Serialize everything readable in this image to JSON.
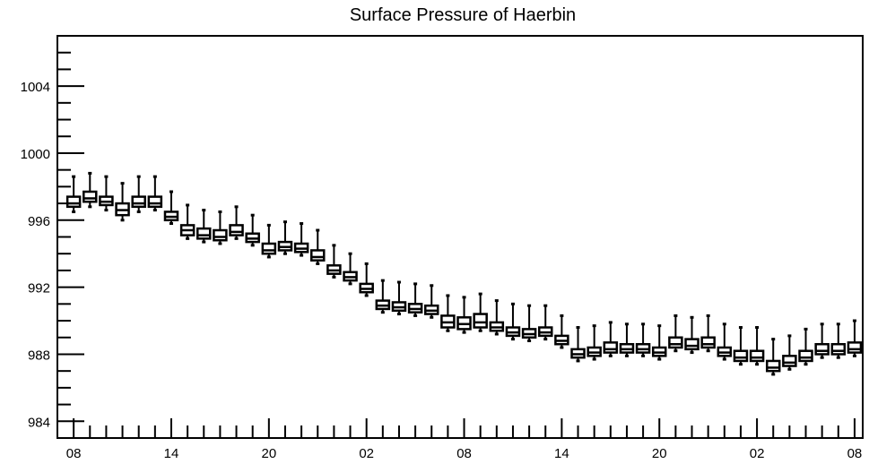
{
  "chart_data": {
    "type": "box",
    "title": "Surface Pressure of Haerbin",
    "xlabel": "",
    "ylabel": "",
    "ylim": [
      983,
      1007
    ],
    "yticks": [
      984,
      988,
      992,
      996,
      1000,
      1004
    ],
    "ytick_labels": [
      "984",
      "988",
      "992",
      "996",
      "1000",
      "1004"
    ],
    "xlim": [
      -1,
      48.5
    ],
    "xticks": [
      0,
      6,
      12,
      18,
      24,
      30,
      36,
      42,
      48
    ],
    "xtick_labels": [
      "08",
      "14",
      "20",
      "02",
      "08",
      "14",
      "20",
      "02",
      "08"
    ],
    "grid": false,
    "boxes": [
      {
        "x": 0,
        "whisker_low": 996.5,
        "q1": 996.8,
        "median": 997.0,
        "q3": 997.4,
        "whisker_high": 998.6
      },
      {
        "x": 1,
        "whisker_low": 996.8,
        "q1": 997.1,
        "median": 997.3,
        "q3": 997.7,
        "whisker_high": 998.8
      },
      {
        "x": 2,
        "whisker_low": 996.6,
        "q1": 996.9,
        "median": 997.1,
        "q3": 997.4,
        "whisker_high": 998.6
      },
      {
        "x": 3,
        "whisker_low": 996.0,
        "q1": 996.3,
        "median": 996.6,
        "q3": 997.0,
        "whisker_high": 998.2
      },
      {
        "x": 4,
        "whisker_low": 996.5,
        "q1": 996.8,
        "median": 997.0,
        "q3": 997.4,
        "whisker_high": 998.6
      },
      {
        "x": 5,
        "whisker_low": 996.6,
        "q1": 996.8,
        "median": 997.0,
        "q3": 997.4,
        "whisker_high": 998.6
      },
      {
        "x": 6,
        "whisker_low": 995.8,
        "q1": 996.0,
        "median": 996.2,
        "q3": 996.5,
        "whisker_high": 997.7
      },
      {
        "x": 7,
        "whisker_low": 994.9,
        "q1": 995.1,
        "median": 995.4,
        "q3": 995.7,
        "whisker_high": 996.9
      },
      {
        "x": 8,
        "whisker_low": 994.7,
        "q1": 994.9,
        "median": 995.1,
        "q3": 995.5,
        "whisker_high": 996.6
      },
      {
        "x": 9,
        "whisker_low": 994.6,
        "q1": 994.8,
        "median": 995.0,
        "q3": 995.4,
        "whisker_high": 996.5
      },
      {
        "x": 10,
        "whisker_low": 994.9,
        "q1": 995.1,
        "median": 995.3,
        "q3": 995.7,
        "whisker_high": 996.8
      },
      {
        "x": 11,
        "whisker_low": 994.5,
        "q1": 994.7,
        "median": 994.9,
        "q3": 995.2,
        "whisker_high": 996.3
      },
      {
        "x": 12,
        "whisker_low": 993.8,
        "q1": 994.0,
        "median": 994.2,
        "q3": 994.6,
        "whisker_high": 995.7
      },
      {
        "x": 13,
        "whisker_low": 994.0,
        "q1": 994.2,
        "median": 994.4,
        "q3": 994.7,
        "whisker_high": 995.9
      },
      {
        "x": 14,
        "whisker_low": 993.9,
        "q1": 994.1,
        "median": 994.3,
        "q3": 994.6,
        "whisker_high": 995.8
      },
      {
        "x": 15,
        "whisker_low": 993.4,
        "q1": 993.6,
        "median": 993.8,
        "q3": 994.2,
        "whisker_high": 995.4
      },
      {
        "x": 16,
        "whisker_low": 992.6,
        "q1": 992.8,
        "median": 993.0,
        "q3": 993.3,
        "whisker_high": 994.5
      },
      {
        "x": 17,
        "whisker_low": 992.2,
        "q1": 992.4,
        "median": 992.6,
        "q3": 992.9,
        "whisker_high": 994.0
      },
      {
        "x": 18,
        "whisker_low": 991.5,
        "q1": 991.7,
        "median": 991.9,
        "q3": 992.2,
        "whisker_high": 993.4
      },
      {
        "x": 19,
        "whisker_low": 990.5,
        "q1": 990.7,
        "median": 990.9,
        "q3": 991.2,
        "whisker_high": 992.4
      },
      {
        "x": 20,
        "whisker_low": 990.4,
        "q1": 990.6,
        "median": 990.8,
        "q3": 991.1,
        "whisker_high": 992.3
      },
      {
        "x": 21,
        "whisker_low": 990.3,
        "q1": 990.5,
        "median": 990.7,
        "q3": 991.0,
        "whisker_high": 992.2
      },
      {
        "x": 22,
        "whisker_low": 990.2,
        "q1": 990.4,
        "median": 990.6,
        "q3": 990.9,
        "whisker_high": 992.1
      },
      {
        "x": 23,
        "whisker_low": 989.4,
        "q1": 989.6,
        "median": 989.9,
        "q3": 990.3,
        "whisker_high": 991.5
      },
      {
        "x": 24,
        "whisker_low": 989.3,
        "q1": 989.5,
        "median": 989.8,
        "q3": 990.2,
        "whisker_high": 991.4
      },
      {
        "x": 25,
        "whisker_low": 989.4,
        "q1": 989.6,
        "median": 989.9,
        "q3": 990.4,
        "whisker_high": 991.6
      },
      {
        "x": 26,
        "whisker_low": 989.2,
        "q1": 989.4,
        "median": 989.6,
        "q3": 989.9,
        "whisker_high": 991.2
      },
      {
        "x": 27,
        "whisker_low": 988.9,
        "q1": 989.1,
        "median": 989.3,
        "q3": 989.6,
        "whisker_high": 991.0
      },
      {
        "x": 28,
        "whisker_low": 988.8,
        "q1": 989.0,
        "median": 989.2,
        "q3": 989.5,
        "whisker_high": 990.9
      },
      {
        "x": 29,
        "whisker_low": 988.9,
        "q1": 989.1,
        "median": 989.3,
        "q3": 989.6,
        "whisker_high": 990.9
      },
      {
        "x": 30,
        "whisker_low": 988.4,
        "q1": 988.6,
        "median": 988.8,
        "q3": 989.1,
        "whisker_high": 990.3
      },
      {
        "x": 31,
        "whisker_low": 987.6,
        "q1": 987.8,
        "median": 988.0,
        "q3": 988.3,
        "whisker_high": 989.6
      },
      {
        "x": 32,
        "whisker_low": 987.7,
        "q1": 987.9,
        "median": 988.1,
        "q3": 988.4,
        "whisker_high": 989.7
      },
      {
        "x": 33,
        "whisker_low": 987.9,
        "q1": 988.1,
        "median": 988.3,
        "q3": 988.7,
        "whisker_high": 989.9
      },
      {
        "x": 34,
        "whisker_low": 987.9,
        "q1": 988.1,
        "median": 988.3,
        "q3": 988.6,
        "whisker_high": 989.8
      },
      {
        "x": 35,
        "whisker_low": 987.9,
        "q1": 988.1,
        "median": 988.3,
        "q3": 988.6,
        "whisker_high": 989.8
      },
      {
        "x": 36,
        "whisker_low": 987.7,
        "q1": 987.9,
        "median": 988.1,
        "q3": 988.4,
        "whisker_high": 989.7
      },
      {
        "x": 37,
        "whisker_low": 988.2,
        "q1": 988.4,
        "median": 988.6,
        "q3": 989.0,
        "whisker_high": 990.3
      },
      {
        "x": 38,
        "whisker_low": 988.1,
        "q1": 988.3,
        "median": 988.5,
        "q3": 988.9,
        "whisker_high": 990.2
      },
      {
        "x": 39,
        "whisker_low": 988.2,
        "q1": 988.4,
        "median": 988.6,
        "q3": 989.0,
        "whisker_high": 990.3
      },
      {
        "x": 40,
        "whisker_low": 987.7,
        "q1": 987.9,
        "median": 988.1,
        "q3": 988.4,
        "whisker_high": 989.8
      },
      {
        "x": 41,
        "whisker_low": 987.4,
        "q1": 987.6,
        "median": 987.8,
        "q3": 988.2,
        "whisker_high": 989.6
      },
      {
        "x": 42,
        "whisker_low": 987.4,
        "q1": 987.6,
        "median": 987.8,
        "q3": 988.2,
        "whisker_high": 989.6
      },
      {
        "x": 43,
        "whisker_low": 986.8,
        "q1": 987.0,
        "median": 987.2,
        "q3": 987.6,
        "whisker_high": 988.9
      },
      {
        "x": 44,
        "whisker_low": 987.1,
        "q1": 987.3,
        "median": 987.5,
        "q3": 987.9,
        "whisker_high": 989.1
      },
      {
        "x": 45,
        "whisker_low": 987.4,
        "q1": 987.6,
        "median": 987.8,
        "q3": 988.2,
        "whisker_high": 989.5
      },
      {
        "x": 46,
        "whisker_low": 987.8,
        "q1": 988.0,
        "median": 988.2,
        "q3": 988.6,
        "whisker_high": 989.8
      },
      {
        "x": 47,
        "whisker_low": 987.8,
        "q1": 988.0,
        "median": 988.2,
        "q3": 988.6,
        "whisker_high": 989.8
      },
      {
        "x": 48,
        "whisker_low": 987.9,
        "q1": 988.1,
        "median": 988.3,
        "q3": 988.7,
        "whisker_high": 990.0
      }
    ]
  }
}
